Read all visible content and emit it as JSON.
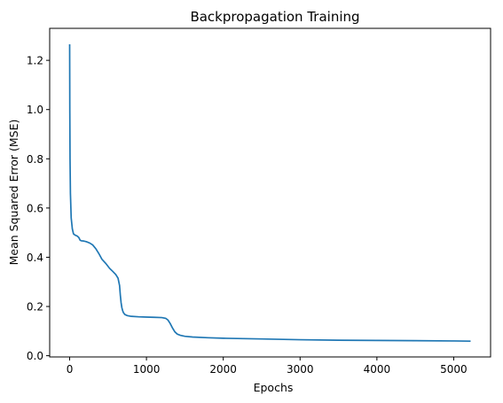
{
  "chart_data": {
    "type": "line",
    "title": "Backpropagation Training",
    "xlabel": "Epochs",
    "ylabel": "Mean Squared Error (MSE)",
    "xlim": [
      -260,
      5480
    ],
    "ylim": [
      -0.005,
      1.33
    ],
    "xticks": [
      0,
      1000,
      2000,
      3000,
      4000,
      5000
    ],
    "xtick_labels": [
      "0",
      "1000",
      "2000",
      "3000",
      "4000",
      "5000"
    ],
    "yticks": [
      0.0,
      0.2,
      0.4,
      0.6,
      0.8,
      1.0,
      1.2
    ],
    "ytick_labels": [
      "0.0",
      "0.2",
      "0.4",
      "0.6",
      "0.8",
      "1.0",
      "1.2"
    ],
    "grid": false,
    "line_color": "#1f77b4",
    "series": [
      {
        "x": [
          0,
          2,
          5,
          10,
          20,
          35,
          50,
          70,
          100,
          120,
          135,
          150,
          180,
          220,
          260,
          300,
          340,
          380,
          420,
          470,
          520,
          560,
          600,
          630,
          650,
          660,
          670,
          680,
          690,
          700,
          720,
          750,
          800,
          900,
          1000,
          1100,
          1200,
          1250,
          1280,
          1310,
          1340,
          1370,
          1400,
          1440,
          1500,
          1600,
          1800,
          2000,
          2500,
          3000,
          3500,
          4000,
          4500,
          5000,
          5220
        ],
        "y": [
          1.265,
          1.0,
          0.8,
          0.66,
          0.56,
          0.515,
          0.495,
          0.49,
          0.486,
          0.48,
          0.47,
          0.467,
          0.466,
          0.463,
          0.458,
          0.45,
          0.435,
          0.415,
          0.392,
          0.375,
          0.355,
          0.343,
          0.33,
          0.315,
          0.285,
          0.245,
          0.215,
          0.195,
          0.183,
          0.175,
          0.167,
          0.163,
          0.16,
          0.158,
          0.157,
          0.156,
          0.155,
          0.152,
          0.145,
          0.13,
          0.112,
          0.097,
          0.088,
          0.083,
          0.079,
          0.076,
          0.073,
          0.071,
          0.068,
          0.065,
          0.063,
          0.062,
          0.061,
          0.06,
          0.059
        ]
      }
    ]
  }
}
